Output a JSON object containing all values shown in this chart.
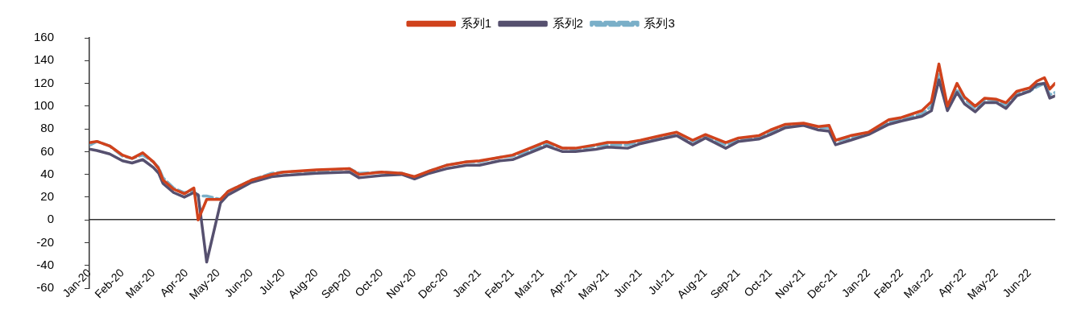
{
  "chart_data": {
    "type": "line",
    "x": [
      "2020-01-02",
      "2020-01-08",
      "2020-01-20",
      "2020-02-01",
      "2020-02-10",
      "2020-02-20",
      "2020-03-01",
      "2020-03-06",
      "2020-03-10",
      "2020-03-20",
      "2020-03-30",
      "2020-04-08",
      "2020-04-12",
      "2020-04-20",
      "2020-05-03",
      "2020-05-10",
      "2020-06-01",
      "2020-06-20",
      "2020-07-01",
      "2020-08-01",
      "2020-09-01",
      "2020-09-10",
      "2020-10-01",
      "2020-10-20",
      "2020-11-01",
      "2020-11-15",
      "2020-12-01",
      "2020-12-20",
      "2021-01-01",
      "2021-01-20",
      "2021-02-01",
      "2021-02-20",
      "2021-03-05",
      "2021-03-20",
      "2021-04-01",
      "2021-04-20",
      "2021-05-01",
      "2021-05-20",
      "2021-06-01",
      "2021-06-20",
      "2021-07-05",
      "2021-07-20",
      "2021-08-01",
      "2021-08-20",
      "2021-09-01",
      "2021-09-20",
      "2021-10-01",
      "2021-10-15",
      "2021-11-01",
      "2021-11-15",
      "2021-11-25",
      "2021-12-01",
      "2021-12-15",
      "2022-01-01",
      "2022-01-20",
      "2022-02-01",
      "2022-02-20",
      "2022-03-01",
      "2022-03-08",
      "2022-03-16",
      "2022-03-25",
      "2022-04-01",
      "2022-04-11",
      "2022-04-20",
      "2022-05-01",
      "2022-05-10",
      "2022-05-20",
      "2022-06-01",
      "2022-06-08",
      "2022-06-15",
      "2022-06-20",
      "2022-06-25"
    ],
    "series": [
      {
        "name": "系列1",
        "color": "#d0421c",
        "line_style": "solid",
        "values": [
          68,
          69,
          65,
          57,
          54,
          59,
          51,
          45,
          35,
          27,
          23,
          28,
          0,
          18,
          18,
          25,
          35,
          40,
          42,
          44,
          45,
          40,
          42,
          41,
          38,
          43,
          48,
          51,
          52,
          55,
          57,
          64,
          69,
          63,
          63,
          66,
          68,
          68,
          70,
          74,
          77,
          70,
          75,
          68,
          72,
          74,
          79,
          84,
          85,
          82,
          83,
          70,
          74,
          77,
          88,
          90,
          96,
          104,
          137,
          100,
          120,
          108,
          100,
          107,
          106,
          103,
          113,
          116,
          122,
          125,
          115,
          120
        ]
      },
      {
        "name": "系列2",
        "color": "#56506f",
        "line_style": "solid",
        "values": [
          62,
          61,
          58,
          52,
          50,
          53,
          46,
          41,
          32,
          24,
          20,
          24,
          22,
          -37,
          15,
          22,
          33,
          38,
          39,
          41,
          42,
          37,
          39,
          40,
          36,
          41,
          45,
          48,
          48,
          52,
          53,
          60,
          65,
          60,
          60,
          62,
          64,
          63,
          67,
          71,
          74,
          66,
          72,
          63,
          69,
          71,
          75,
          81,
          83,
          79,
          78,
          66,
          70,
          75,
          84,
          87,
          91,
          96,
          123,
          96,
          112,
          102,
          95,
          103,
          103,
          98,
          109,
          113,
          119,
          120,
          107,
          109
        ]
      },
      {
        "name": "系列3",
        "color": "#7aafc8",
        "line_style": "dashed",
        "values": [
          66,
          69,
          65,
          56,
          54,
          57,
          51,
          46,
          37,
          28,
          24,
          25,
          21,
          21,
          18,
          25,
          35,
          41,
          42,
          43,
          45,
          41,
          42,
          41,
          37,
          43,
          48,
          51,
          51,
          55,
          56,
          62,
          67,
          63,
          62,
          65,
          66,
          66,
          69,
          73,
          75,
          69,
          74,
          66,
          71,
          73,
          77,
          83,
          84,
          81,
          81,
          69,
          72,
          77,
          86,
          88,
          93,
          100,
          128,
          98,
          115,
          106,
          98,
          106,
          105,
          101,
          111,
          113,
          117,
          120,
          110,
          112
        ]
      }
    ],
    "xlim": [
      "2020-01-01",
      "2022-06-25"
    ],
    "xticks": [
      {
        "value": "2020-01",
        "label": "Jan-20"
      },
      {
        "value": "2020-02",
        "label": "Feb-20"
      },
      {
        "value": "2020-03",
        "label": "Mar-20"
      },
      {
        "value": "2020-04",
        "label": "Apr-20"
      },
      {
        "value": "2020-05",
        "label": "May-20"
      },
      {
        "value": "2020-06",
        "label": "Jun-20"
      },
      {
        "value": "2020-07",
        "label": "Jul-20"
      },
      {
        "value": "2020-08",
        "label": "Aug-20"
      },
      {
        "value": "2020-09",
        "label": "Sep-20"
      },
      {
        "value": "2020-10",
        "label": "Oct-20"
      },
      {
        "value": "2020-11",
        "label": "Nov-20"
      },
      {
        "value": "2020-12",
        "label": "Dec-20"
      },
      {
        "value": "2021-01",
        "label": "Jan-21"
      },
      {
        "value": "2021-02",
        "label": "Feb-21"
      },
      {
        "value": "2021-03",
        "label": "Mar-21"
      },
      {
        "value": "2021-04",
        "label": "Apr-21"
      },
      {
        "value": "2021-05",
        "label": "May-21"
      },
      {
        "value": "2021-06",
        "label": "Jun-21"
      },
      {
        "value": "2021-07",
        "label": "Jul-21"
      },
      {
        "value": "2021-08",
        "label": "Aug-21"
      },
      {
        "value": "2021-09",
        "label": "Sep-21"
      },
      {
        "value": "2021-10",
        "label": "Oct-21"
      },
      {
        "value": "2021-11",
        "label": "Nov-21"
      },
      {
        "value": "2021-12",
        "label": "Dec-21"
      },
      {
        "value": "2022-01",
        "label": "Jan-22"
      },
      {
        "value": "2022-02",
        "label": "Feb-22"
      },
      {
        "value": "2022-03",
        "label": "Mar-22"
      },
      {
        "value": "2022-04",
        "label": "Apr-22"
      },
      {
        "value": "2022-05",
        "label": "May-22"
      },
      {
        "value": "2022-06",
        "label": "Jun-22"
      }
    ],
    "ylim": [
      -60,
      160
    ],
    "yticks": [
      -60,
      -40,
      -20,
      0,
      20,
      40,
      60,
      80,
      100,
      120,
      140,
      160
    ],
    "legend": "top",
    "marker": "none"
  }
}
